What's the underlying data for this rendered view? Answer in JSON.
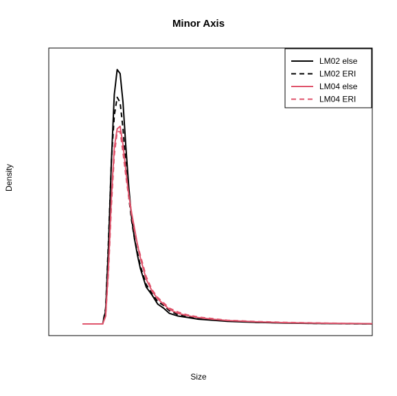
{
  "chart_data": {
    "type": "line",
    "title": "Minor Axis",
    "xlabel": "Size",
    "ylabel": "Density",
    "xlim": [
      0,
      100
    ],
    "ylim": [
      0,
      1.0
    ],
    "grid": false,
    "legend_position": "top-right",
    "series": [
      {
        "name": "LM02 else",
        "color": "#000000",
        "dash": "solid",
        "x": [
          0,
          7,
          8,
          9,
          10,
          11,
          12,
          13,
          14,
          15,
          16,
          17,
          18,
          19,
          20,
          22,
          24,
          26,
          28,
          30,
          33,
          36,
          40,
          45,
          50,
          60,
          70,
          80,
          90,
          100
        ],
        "y": [
          0.0,
          0.0,
          0.05,
          0.3,
          0.62,
          0.87,
          0.965,
          0.95,
          0.84,
          0.67,
          0.52,
          0.4,
          0.32,
          0.26,
          0.21,
          0.14,
          0.11,
          0.075,
          0.06,
          0.04,
          0.03,
          0.025,
          0.018,
          0.014,
          0.01,
          0.006,
          0.003,
          0.002,
          0.001,
          0.0
        ]
      },
      {
        "name": "LM02 ERI",
        "color": "#000000",
        "dash": "dashed",
        "x": [
          0,
          7,
          8,
          9,
          10,
          11,
          12,
          13,
          14,
          15,
          16,
          17,
          18,
          19,
          20,
          22,
          24,
          26,
          28,
          30,
          33,
          36,
          40,
          45,
          50,
          60,
          70,
          80,
          90,
          100
        ],
        "y": [
          0.0,
          0.0,
          0.06,
          0.32,
          0.62,
          0.79,
          0.86,
          0.84,
          0.74,
          0.6,
          0.48,
          0.39,
          0.32,
          0.27,
          0.22,
          0.15,
          0.115,
          0.085,
          0.07,
          0.05,
          0.035,
          0.03,
          0.022,
          0.016,
          0.012,
          0.006,
          0.004,
          0.002,
          0.001,
          0.0
        ]
      },
      {
        "name": "LM04 else",
        "color": "#DF536B",
        "dash": "solid",
        "x": [
          0,
          7,
          8,
          9,
          10,
          11,
          12,
          13,
          14,
          15,
          16,
          17,
          18,
          19,
          20,
          22,
          24,
          26,
          28,
          30,
          33,
          36,
          40,
          45,
          50,
          60,
          70,
          80,
          90,
          100
        ],
        "y": [
          0.0,
          0.0,
          0.03,
          0.22,
          0.48,
          0.67,
          0.74,
          0.75,
          0.68,
          0.58,
          0.49,
          0.42,
          0.36,
          0.3,
          0.25,
          0.17,
          0.125,
          0.095,
          0.075,
          0.055,
          0.04,
          0.032,
          0.024,
          0.018,
          0.013,
          0.008,
          0.005,
          0.003,
          0.002,
          0.001
        ]
      },
      {
        "name": "LM04 ERI",
        "color": "#DF536B",
        "dash": "dashed",
        "x": [
          0,
          7,
          8,
          9,
          10,
          11,
          12,
          13,
          14,
          15,
          16,
          17,
          18,
          19,
          20,
          22,
          24,
          26,
          28,
          30,
          33,
          36,
          40,
          45,
          50,
          60,
          70,
          80,
          90,
          100
        ],
        "y": [
          0.0,
          0.0,
          0.03,
          0.2,
          0.45,
          0.64,
          0.73,
          0.73,
          0.65,
          0.56,
          0.48,
          0.41,
          0.35,
          0.3,
          0.26,
          0.18,
          0.13,
          0.1,
          0.08,
          0.06,
          0.045,
          0.035,
          0.026,
          0.02,
          0.014,
          0.009,
          0.006,
          0.004,
          0.002,
          0.001
        ]
      }
    ]
  }
}
